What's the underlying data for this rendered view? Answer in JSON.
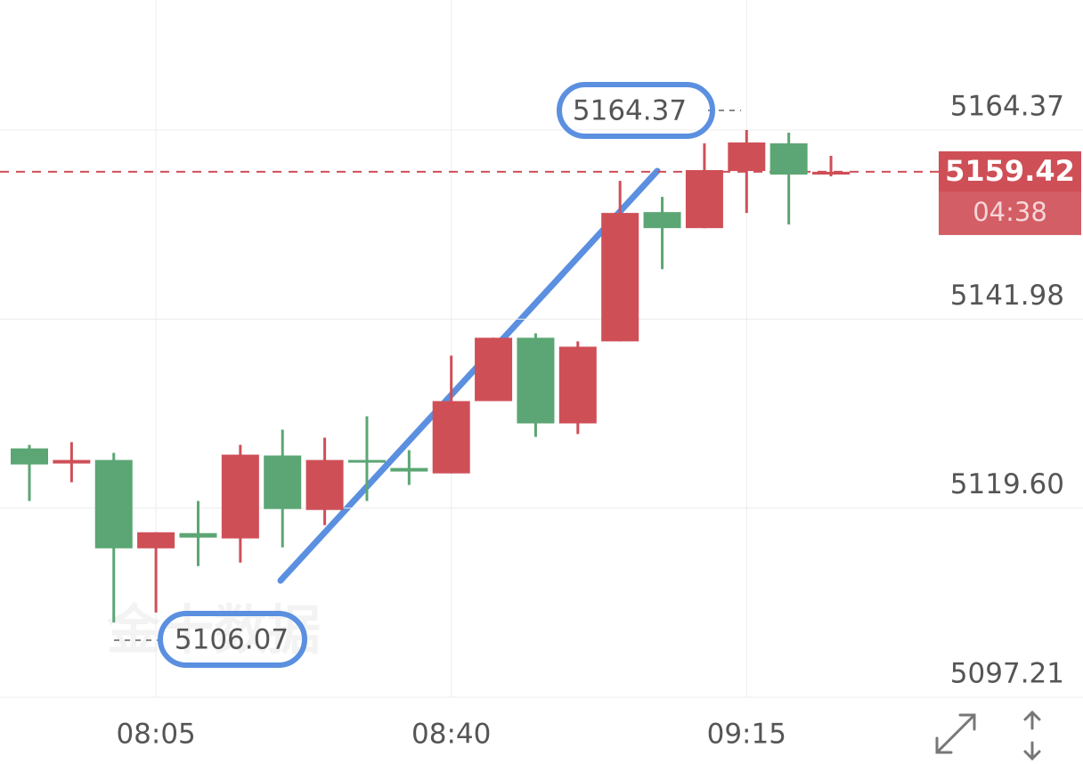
{
  "chart_data": {
    "type": "candlestick",
    "watermark": "金十数据",
    "categories": [
      null,
      null,
      null,
      "08:05",
      null,
      null,
      null,
      null,
      null,
      null,
      "08:40",
      null,
      null,
      null,
      null,
      null,
      null,
      "09:15",
      null,
      null
    ],
    "open": [
      5126.67,
      5124.88,
      5125.3,
      5114.84,
      5116.64,
      5116.01,
      5125.83,
      5119.38,
      5125.3,
      5124.35,
      5123.71,
      5132.27,
      5139.77,
      5129.63,
      5139.34,
      5154.65,
      5152.75,
      5159.51,
      5162.79,
      5159.09
    ],
    "high": [
      5127.09,
      5127.41,
      5126.14,
      5116.74,
      5120.44,
      5127.09,
      5128.89,
      5127.94,
      5130.47,
      5126.46,
      5137.65,
      5139.77,
      5140.29,
      5139.34,
      5158.35,
      5156.45,
      5162.79,
      5164.37,
      5164.05,
      5161.31
    ],
    "low": [
      5120.44,
      5122.66,
      5106.07,
      5107.24,
      5112.73,
      5113.15,
      5114.95,
      5117.59,
      5120.44,
      5122.34,
      5123.71,
      5132.27,
      5128.04,
      5128.36,
      5139.34,
      5147.9,
      5152.75,
      5154.55,
      5153.18,
      5158.88
    ],
    "close": [
      5124.77,
      5125.3,
      5114.84,
      5116.74,
      5116.11,
      5125.93,
      5119.49,
      5125.3,
      5124.98,
      5123.93,
      5132.27,
      5139.77,
      5129.63,
      5138.71,
      5154.55,
      5152.75,
      5159.62,
      5162.89,
      5159.09,
      5159.42
    ],
    "up_color": "#cf4f57",
    "down_color": "#5ba674",
    "ylim": [
      5097.21,
      5179.76
    ],
    "yticks": [
      5164.37,
      5141.98,
      {
        "value": 5119.6,
        "label": "5119.60"
      },
      5097.21
    ],
    "grid": true,
    "max_price": 5164.37,
    "min_price": 5106.07,
    "last_price": 5159.42,
    "countdown": "04:38"
  }
}
